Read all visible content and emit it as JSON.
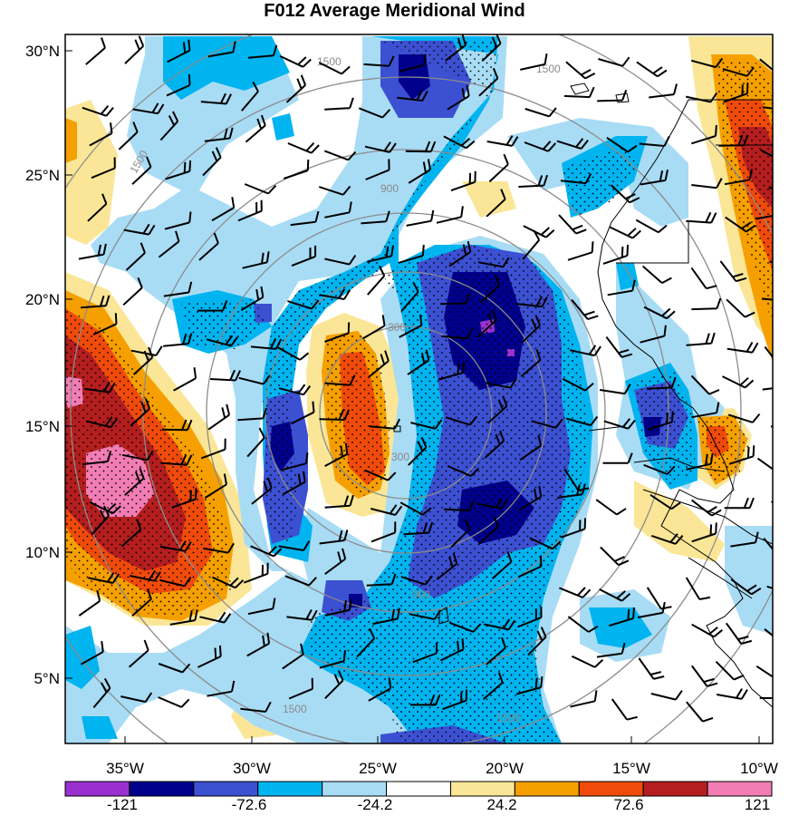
{
  "title": "F012 Average Meridional Wind",
  "map": {
    "lat_ticks": [
      "30°N",
      "25°N",
      "20°N",
      "15°N",
      "10°N",
      "5°N"
    ],
    "lon_ticks": [
      "35°W",
      "30°W",
      "25°W",
      "20°W",
      "15°W",
      "10°W"
    ]
  },
  "range_rings": {
    "labels": [
      "300",
      "900",
      "1500"
    ],
    "color": "#8c8c8c"
  },
  "colorbar": {
    "labels": [
      "-121",
      "-72.6",
      "-24.2",
      "24.2",
      "72.6",
      "121"
    ],
    "colors": [
      "#9b30d0",
      "#00008c",
      "#3c50d2",
      "#00b4f0",
      "#a8dcf5",
      "#ffffff",
      "#fae696",
      "#f5a000",
      "#f04b0a",
      "#b41e1e",
      "#f27db4"
    ]
  },
  "colors": {
    "positive_strong": "#b41e1e",
    "positive_mid": "#f04b0a",
    "positive_weak": "#f5a000",
    "positive_faint": "#fae696",
    "negative_faint": "#a8dcf5",
    "negative_weak": "#00b4f0",
    "negative_mid": "#3c50d2",
    "negative_strong": "#00008c",
    "extreme_pos": "#f27db4",
    "extreme_neg": "#9b30d0"
  }
}
